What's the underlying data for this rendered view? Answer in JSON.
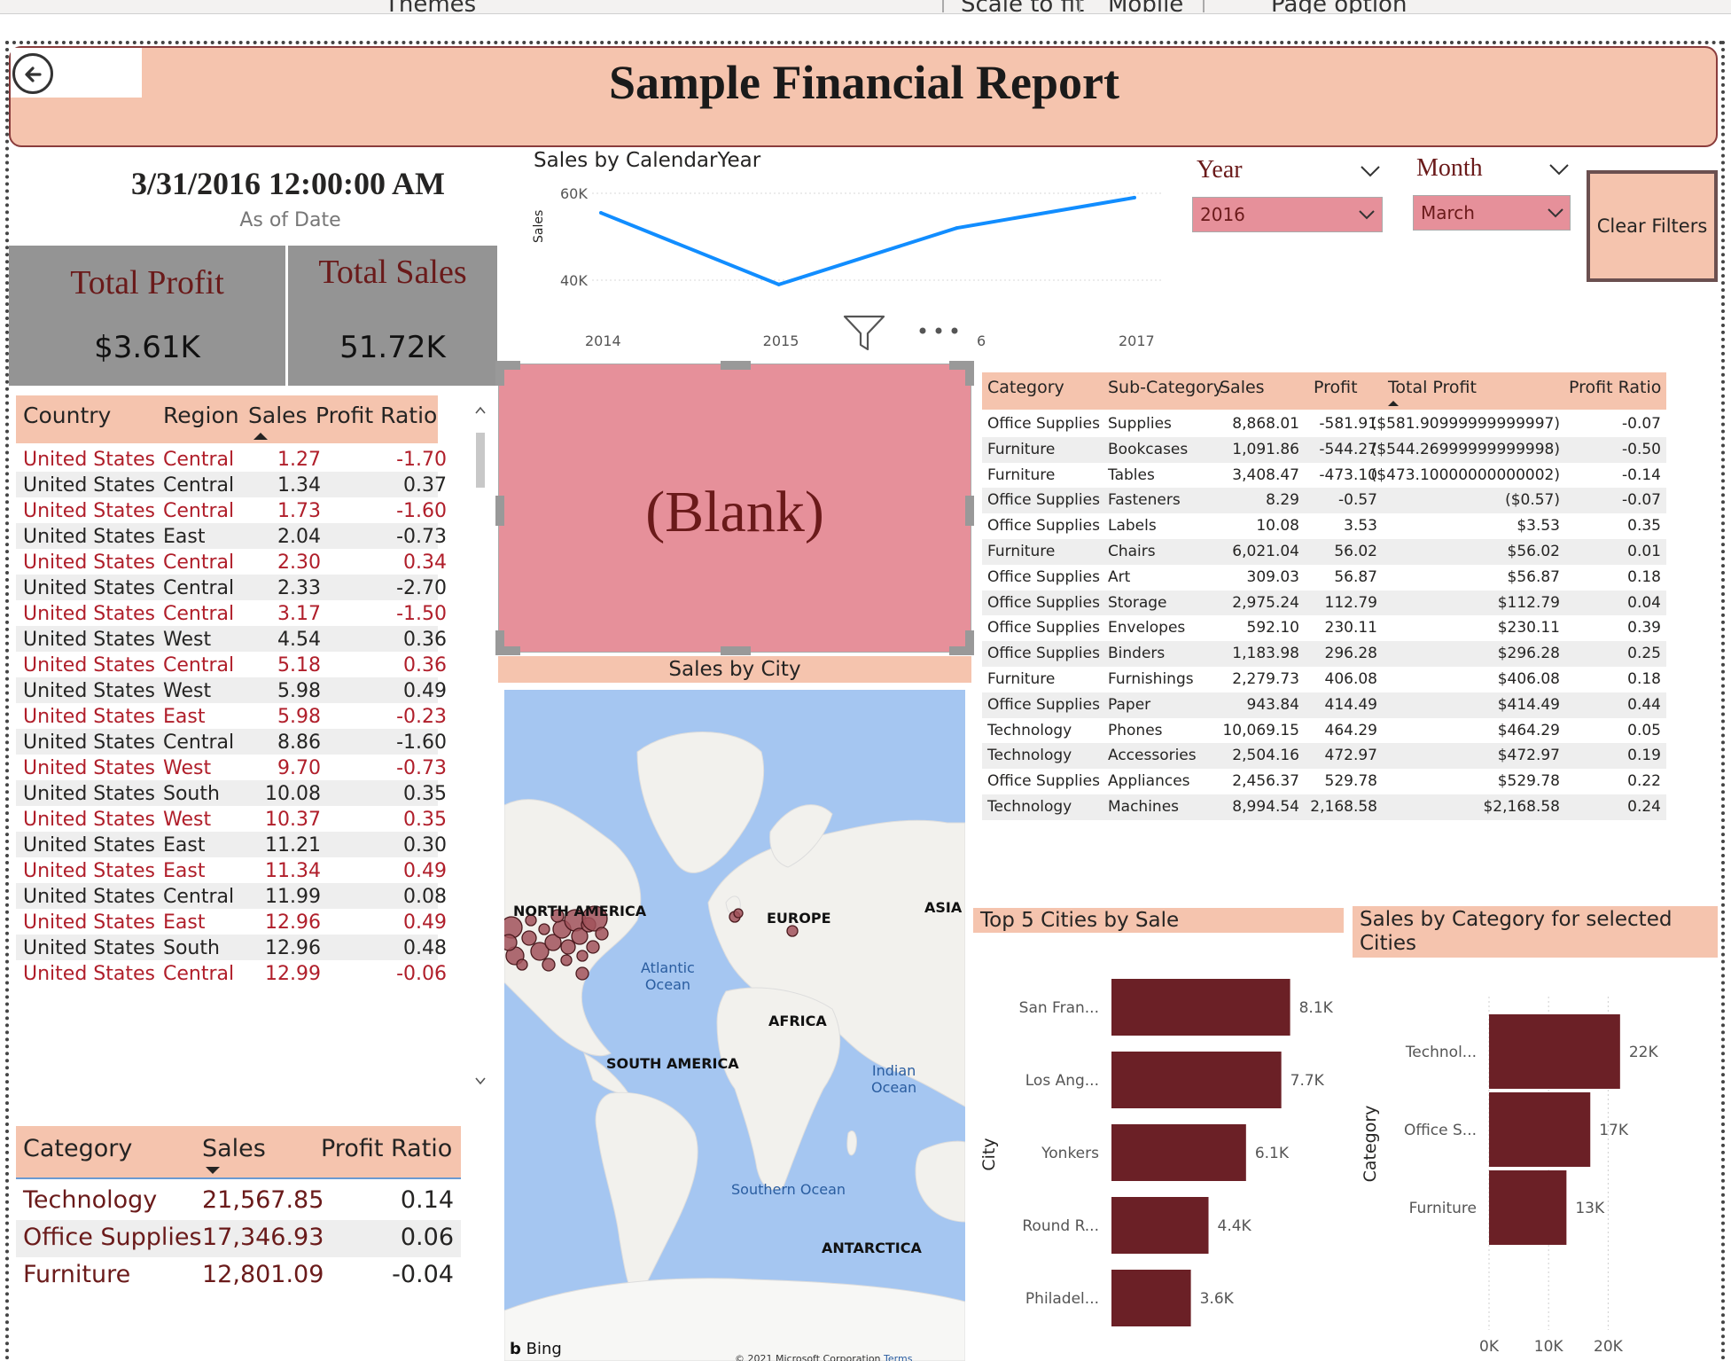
{
  "toolbar": {
    "items": [
      "Themes",
      "Scale to fit",
      "Mobile",
      "Page option"
    ]
  },
  "header": {
    "title": "Sample Financial Report"
  },
  "as_of": {
    "value": "3/31/2016 12:00:00 AM",
    "label": "As of Date"
  },
  "cards": {
    "profit": {
      "label": "Total Profit",
      "value": "$3.61K"
    },
    "sales": {
      "label": "Total Sales",
      "value": "51.72K"
    }
  },
  "region_table": {
    "headers": [
      "Country",
      "Region",
      "Sales",
      "Profit Ratio"
    ],
    "rows": [
      [
        "United States",
        "Central",
        "1.27",
        "-1.70"
      ],
      [
        "United States",
        "Central",
        "1.34",
        "0.37"
      ],
      [
        "United States",
        "Central",
        "1.73",
        "-1.60"
      ],
      [
        "United States",
        "East",
        "2.04",
        "-0.73"
      ],
      [
        "United States",
        "Central",
        "2.30",
        "0.34"
      ],
      [
        "United States",
        "Central",
        "2.33",
        "-2.70"
      ],
      [
        "United States",
        "Central",
        "3.17",
        "-1.50"
      ],
      [
        "United States",
        "West",
        "4.54",
        "0.36"
      ],
      [
        "United States",
        "Central",
        "5.18",
        "0.36"
      ],
      [
        "United States",
        "West",
        "5.98",
        "0.49"
      ],
      [
        "United States",
        "East",
        "5.98",
        "-0.23"
      ],
      [
        "United States",
        "Central",
        "8.86",
        "-1.60"
      ],
      [
        "United States",
        "West",
        "9.70",
        "-0.73"
      ],
      [
        "United States",
        "South",
        "10.08",
        "0.35"
      ],
      [
        "United States",
        "West",
        "10.37",
        "0.35"
      ],
      [
        "United States",
        "East",
        "11.21",
        "0.30"
      ],
      [
        "United States",
        "East",
        "11.34",
        "0.49"
      ],
      [
        "United States",
        "Central",
        "11.99",
        "0.08"
      ],
      [
        "United States",
        "East",
        "12.96",
        "0.49"
      ],
      [
        "United States",
        "South",
        "12.96",
        "0.48"
      ],
      [
        "United States",
        "Central",
        "12.99",
        "-0.06"
      ]
    ]
  },
  "category_table": {
    "headers": [
      "Category",
      "Sales",
      "Profit Ratio"
    ],
    "rows": [
      [
        "Technology",
        "21,567.85",
        "0.14"
      ],
      [
        "Office Supplies",
        "17,346.93",
        "0.06"
      ],
      [
        "Furniture",
        "12,801.09",
        "-0.04"
      ]
    ]
  },
  "slicers": {
    "year": {
      "label": "Year",
      "value": "2016"
    },
    "month": {
      "label": "Month",
      "value": "March"
    },
    "clear_label": "Clear Filters"
  },
  "blank_visual": {
    "text": "(Blank)"
  },
  "map": {
    "title": "Sales by City",
    "labels": [
      "NORTH AMERICA",
      "EUROPE",
      "ASIA",
      "AFRICA",
      "SOUTH AMERICA",
      "ANTARCTICA"
    ],
    "oceans": [
      "Atlantic\nOcean",
      "Indian\nOcean",
      "Southern Ocean"
    ],
    "attribution": "Bing",
    "copyright": "© 2021 Microsoft Corporation",
    "terms": "Terms"
  },
  "subcat_table": {
    "headers": [
      "Category",
      "Sub-Category",
      "Sales",
      "Profit",
      "Total Profit",
      "Profit Ratio"
    ],
    "rows": [
      [
        "Office Supplies",
        "Supplies",
        "8,868.01",
        "-581.91",
        "($581.90999999999997)",
        "-0.07"
      ],
      [
        "Furniture",
        "Bookcases",
        "1,091.86",
        "-544.27",
        "($544.26999999999998)",
        "-0.50"
      ],
      [
        "Furniture",
        "Tables",
        "3,408.47",
        "-473.10",
        "($473.10000000000002)",
        "-0.14"
      ],
      [
        "Office Supplies",
        "Fasteners",
        "8.29",
        "-0.57",
        "($0.57)",
        "-0.07"
      ],
      [
        "Office Supplies",
        "Labels",
        "10.08",
        "3.53",
        "$3.53",
        "0.35"
      ],
      [
        "Furniture",
        "Chairs",
        "6,021.04",
        "56.02",
        "$56.02",
        "0.01"
      ],
      [
        "Office Supplies",
        "Art",
        "309.03",
        "56.87",
        "$56.87",
        "0.18"
      ],
      [
        "Office Supplies",
        "Storage",
        "2,975.24",
        "112.79",
        "$112.79",
        "0.04"
      ],
      [
        "Office Supplies",
        "Envelopes",
        "592.10",
        "230.11",
        "$230.11",
        "0.39"
      ],
      [
        "Office Supplies",
        "Binders",
        "1,183.98",
        "296.28",
        "$296.28",
        "0.25"
      ],
      [
        "Furniture",
        "Furnishings",
        "2,279.73",
        "406.08",
        "$406.08",
        "0.18"
      ],
      [
        "Office Supplies",
        "Paper",
        "943.84",
        "414.49",
        "$414.49",
        "0.44"
      ],
      [
        "Technology",
        "Phones",
        "10,069.15",
        "464.29",
        "$464.29",
        "0.05"
      ],
      [
        "Technology",
        "Accessories",
        "2,504.16",
        "472.97",
        "$472.97",
        "0.19"
      ],
      [
        "Office Supplies",
        "Appliances",
        "2,456.37",
        "529.78",
        "$529.78",
        "0.22"
      ],
      [
        "Technology",
        "Machines",
        "8,994.54",
        "2,168.58",
        "$2,168.58",
        "0.24"
      ]
    ]
  },
  "chart_data": [
    {
      "type": "line",
      "title": "Sales by CalendarYear",
      "xlabel": "",
      "ylabel": "Sales",
      "x_ticks": [
        "2014",
        "2015",
        "6",
        "2017"
      ],
      "y_ticks": [
        "60K",
        "40K"
      ],
      "x": [
        2014,
        2015,
        2016,
        2017
      ],
      "values": [
        55500,
        39000,
        52000,
        59000
      ],
      "ylim": [
        40000,
        60000
      ],
      "color": "#118dff"
    },
    {
      "type": "bar",
      "title": "Top 5 Cities by Sale",
      "ylabel": "City",
      "xlabel": "Sales by City",
      "categories": [
        "San Fran...",
        "Los Ang...",
        "Yonkers",
        "Round R...",
        "Philadel..."
      ],
      "values": [
        8100,
        7700,
        6100,
        4400,
        3600
      ],
      "data_labels": [
        "8.1K",
        "7.7K",
        "6.1K",
        "4.4K",
        "3.6K"
      ],
      "xlim": [
        0,
        9000
      ],
      "color": "#6b2026"
    },
    {
      "type": "bar",
      "title": "Sales by Category for selected Cities",
      "ylabel": "Category",
      "xlabel": "Sales",
      "categories": [
        "Technol...",
        "Office S...",
        "Furniture"
      ],
      "values": [
        22000,
        17000,
        13000
      ],
      "data_labels": [
        "22K",
        "17K",
        "13K"
      ],
      "x_ticks": [
        "0K",
        "10K",
        "20K"
      ],
      "xlim": [
        0,
        25000
      ],
      "color": "#6b2026"
    }
  ],
  "icons": {
    "back": "back-arrow-icon",
    "filter": "filter-icon",
    "more": "more-options-icon",
    "sort": "sort-indicator-icon"
  }
}
